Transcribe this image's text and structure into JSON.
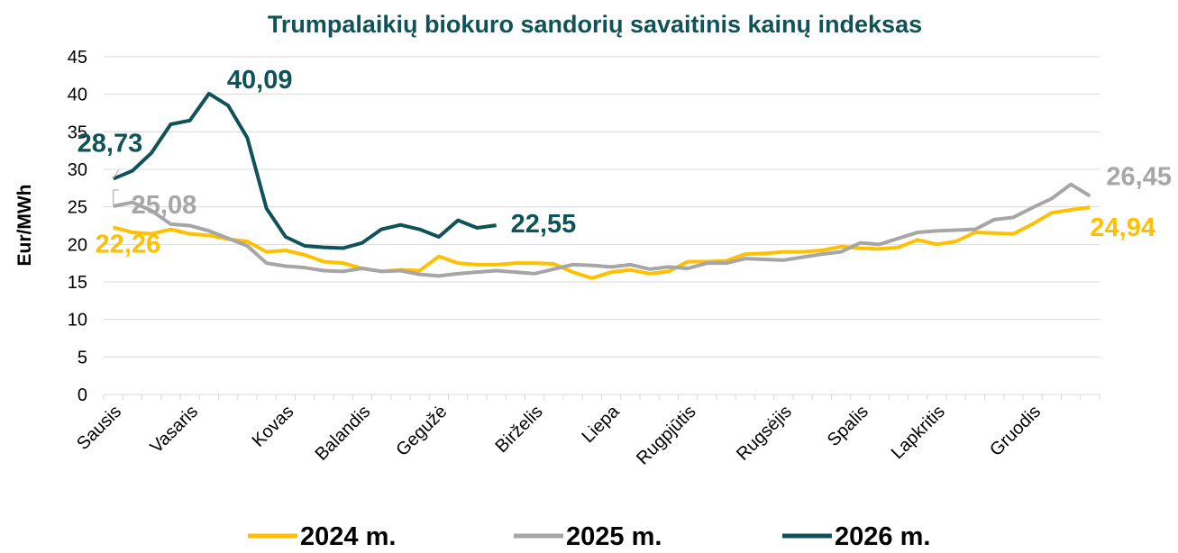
{
  "chart_data": {
    "type": "line",
    "title": "Trumpalaikių biokuro sandorių savaitinis kainų indeksas",
    "y_label": "Eur/MWh",
    "categories": [
      "Sausis",
      null,
      null,
      null,
      "Vasaris",
      null,
      null,
      null,
      null,
      "Kovas",
      null,
      null,
      null,
      "Balandis",
      null,
      null,
      null,
      "Gegužė",
      null,
      null,
      null,
      null,
      "Birželis",
      null,
      null,
      null,
      "Liepa",
      null,
      null,
      null,
      "Rugpjūtis",
      null,
      null,
      null,
      null,
      "Rugsėjis",
      null,
      null,
      null,
      "Spalis",
      null,
      null,
      null,
      "Lapkritis",
      null,
      null,
      null,
      null,
      "Gruodis",
      null,
      null,
      null
    ],
    "ylim": [
      0,
      45
    ],
    "yticks": [
      0,
      5,
      10,
      15,
      20,
      25,
      30,
      35,
      40,
      45
    ],
    "grid": true,
    "legend": "bottom",
    "series": [
      {
        "name": "2024 m.",
        "color": "#ffc000",
        "values": [
          22.26,
          21.6,
          21.4,
          22,
          21.4,
          21.2,
          20.7,
          20.4,
          19,
          19.2,
          18.6,
          17.7,
          17.5,
          16.8,
          16.4,
          16.6,
          16.5,
          18.4,
          17.5,
          17.3,
          17.3,
          17.5,
          17.5,
          17.4,
          16.3,
          15.5,
          16.3,
          16.6,
          16.1,
          16.4,
          17.7,
          17.7,
          17.8,
          18.7,
          18.8,
          19,
          19,
          19.2,
          19.7,
          19.5,
          19.4,
          19.6,
          20.6,
          20,
          20.4,
          21.6,
          21.5,
          21.4,
          22.7,
          24.2,
          24.6,
          24.94
        ],
        "value_labels": [
          "22,26",
          null,
          null,
          null,
          null,
          null,
          null,
          null,
          null,
          null,
          null,
          null,
          null,
          null,
          null,
          null,
          null,
          null,
          null,
          null,
          null,
          null,
          null,
          null,
          null,
          null,
          null,
          null,
          null,
          null,
          null,
          null,
          null,
          null,
          null,
          null,
          null,
          null,
          null,
          null,
          null,
          null,
          null,
          null,
          null,
          null,
          null,
          null,
          null,
          null,
          null,
          "24,94"
        ]
      },
      {
        "name": "2025 m.",
        "color": "#a6a6a6",
        "values": [
          25.08,
          25.6,
          24.5,
          22.7,
          22.5,
          21.8,
          20.8,
          19.8,
          17.5,
          17.1,
          16.9,
          16.5,
          16.4,
          16.8,
          16.4,
          16.5,
          16,
          15.8,
          16.1,
          16.3,
          16.5,
          16.3,
          16.1,
          16.7,
          17.3,
          17.2,
          17,
          17.3,
          16.7,
          17,
          16.8,
          17.5,
          17.5,
          18.1,
          18,
          17.9,
          18.3,
          18.7,
          19,
          20.2,
          20,
          20.8,
          21.6,
          21.8,
          21.9,
          22,
          23.3,
          23.6,
          24.9,
          26.1,
          28,
          26.45
        ],
        "value_labels": [
          "25,08",
          null,
          null,
          null,
          null,
          null,
          null,
          null,
          null,
          null,
          null,
          null,
          null,
          null,
          null,
          null,
          null,
          null,
          null,
          null,
          null,
          null,
          null,
          null,
          null,
          null,
          null,
          null,
          null,
          null,
          null,
          null,
          null,
          null,
          null,
          null,
          null,
          null,
          null,
          null,
          null,
          null,
          null,
          null,
          null,
          null,
          null,
          null,
          null,
          null,
          null,
          "26,45"
        ]
      },
      {
        "name": "2026 m.",
        "color": "#0f5257",
        "values": [
          28.73,
          29.8,
          32.2,
          36,
          36.5,
          40.09,
          38.5,
          34.2,
          24.8,
          21,
          19.8,
          19.6,
          19.5,
          20.2,
          22,
          22.6,
          22,
          21,
          23.2,
          22.2,
          22.55,
          null,
          null,
          null,
          null,
          null,
          null,
          null,
          null,
          null,
          null,
          null,
          null,
          null,
          null,
          null,
          null,
          null,
          null,
          null,
          null,
          null,
          null,
          null,
          null,
          null,
          null,
          null,
          null,
          null,
          null,
          null
        ],
        "value_labels": [
          "28,73",
          null,
          null,
          null,
          null,
          "40,09",
          null,
          null,
          null,
          null,
          null,
          null,
          null,
          null,
          null,
          null,
          null,
          null,
          null,
          null,
          "22,55",
          null,
          null,
          null,
          null,
          null,
          null,
          null,
          null,
          null,
          null,
          null,
          null,
          null,
          null,
          null,
          null,
          null,
          null,
          null,
          null,
          null,
          null,
          null,
          null,
          null,
          null,
          null,
          null,
          null,
          null,
          null
        ]
      }
    ]
  }
}
